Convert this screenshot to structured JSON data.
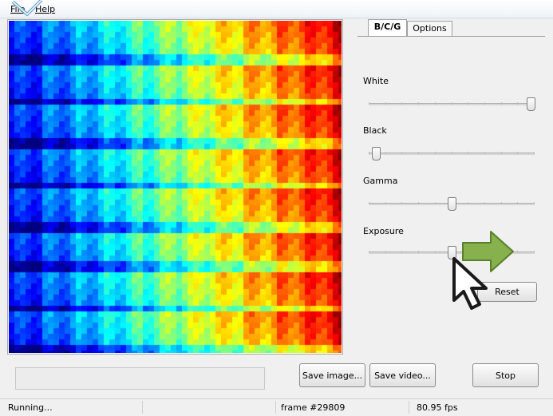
{
  "menu": {
    "file": "File",
    "help": "Help"
  },
  "tabs": [
    {
      "label": "B/C/G",
      "active": true
    },
    {
      "label": "Options",
      "active": false
    }
  ],
  "sliders": {
    "white": {
      "label": "White",
      "value": 1.0
    },
    "black": {
      "label": "Black",
      "value": 0.02
    },
    "gamma": {
      "label": "Gamma",
      "value": 0.5
    },
    "exposure": {
      "label": "Exposure",
      "value": 0.5
    }
  },
  "buttons": {
    "reset": "Reset",
    "save_image": "Save image...",
    "save_video": "Save video...",
    "stop": "Stop"
  },
  "status": {
    "state": "Running...",
    "frame": "frame #29809",
    "fps": "80.95 fps"
  },
  "colors": {
    "arrow_fill": "#86b14c",
    "arrow_stroke": "#5a7f2c"
  },
  "icons": {
    "arrow": "right-arrow-icon",
    "cursor": "mouse-pointer-icon",
    "check": "check-mark-icon"
  }
}
